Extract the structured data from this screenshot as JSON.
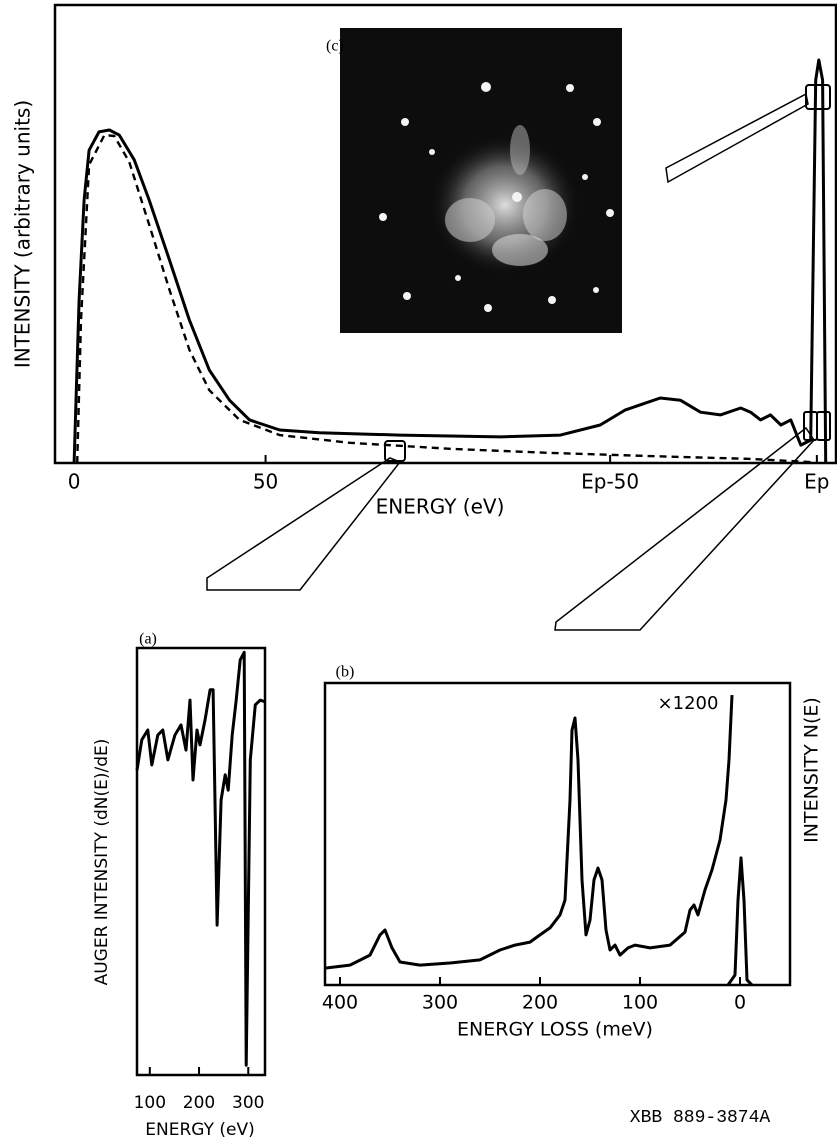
{
  "figure_id": "XBB 889-3874A",
  "chart_data": [
    {
      "type": "line",
      "inset_label": "(c)",
      "xlabel": "ENERGY (eV)",
      "ylabel": "INTENSITY (arbitrary units)",
      "xlim": [
        -5,
        199
      ],
      "ylim": [
        0,
        100
      ],
      "xticks": [
        0,
        50,
        {
          "value": 140,
          "label": "Ep-50"
        },
        {
          "value": 194,
          "label": "Ep"
        }
      ],
      "series": [
        {
          "style": "solid",
          "color": "#000000",
          "x": [
            0,
            1.3,
            2.6,
            3.9,
            6.5,
            9.2,
            11.8,
            15.7,
            19.6,
            24.9,
            30.1,
            35.3,
            40.6,
            45.8,
            53.7,
            64.1,
            85.1,
            111.3,
            127,
            137.4,
            144,
            153.1,
            158.4,
            163.6,
            168.8,
            174.1,
            176.7,
            179.3,
            181.9,
            184.6,
            187.2,
            189.8,
            192.4,
            193.7,
            194.5,
            195.5,
            196.3
          ],
          "values": [
            0,
            35.6,
            57.4,
            68.3,
            72.3,
            72.7,
            71.6,
            66.2,
            57.4,
            44.3,
            31.2,
            20.3,
            13.7,
            9.4,
            7.2,
            6.6,
            6.1,
            5.7,
            6.1,
            8.3,
            11.6,
            14.2,
            13.7,
            11.1,
            10.5,
            12.0,
            11.1,
            9.4,
            10.5,
            8.3,
            9.4,
            3.9,
            5.0,
            83.6,
            88.0,
            83.6,
            0
          ]
        },
        {
          "style": "dashed",
          "color": "#000000",
          "x": [
            0.8,
            1.8,
            3.9,
            7.9,
            10.5,
            14.4,
            19.6,
            24.9,
            30.1,
            35.3,
            43.2,
            53.7,
            72.0,
            98.2,
            124.3,
            150.5,
            176.7,
            192.4
          ],
          "values": [
            0,
            31.2,
            65.1,
            71.6,
            71.4,
            65.7,
            52.0,
            37.8,
            24.7,
            15.9,
            9.4,
            6.1,
            4.4,
            3.1,
            2.2,
            1.5,
            0.9,
            0.2
          ]
        }
      ]
    },
    {
      "type": "line",
      "panel_label": "(a)",
      "xlabel": "ENERGY (eV)",
      "ylabel": "AUGER INTENSITY (dN(E)/dE)",
      "xlim": [
        74,
        334
      ],
      "ylim": [
        0,
        100
      ],
      "xticks": [
        100,
        200,
        300
      ],
      "series": [
        {
          "style": "solid",
          "color": "#000000",
          "x": [
            74,
            83.7,
            95.9,
            104.1,
            116.3,
            126.5,
            136.7,
            151.0,
            163.3,
            173.5,
            181.6,
            187.8,
            195.9,
            202.0,
            212.2,
            222.4,
            228.6,
            236.7,
            244.9,
            253.1,
            259.2,
            267.3,
            275.5,
            283.7,
            291.8,
            295.9,
            304.1,
            314.3,
            324.5,
            334
          ],
          "values": [
            71.4,
            78.5,
            80.8,
            72.6,
            79.6,
            80.8,
            73.8,
            79.6,
            82.0,
            76.1,
            87.8,
            69.1,
            80.8,
            77.3,
            83.1,
            90.2,
            90.2,
            35.1,
            64.4,
            70.3,
            66.7,
            79.6,
            87.8,
            97.2,
            99,
            2.3,
            73.8,
            86.7,
            87.8,
            87.4
          ]
        }
      ]
    },
    {
      "type": "line",
      "panel_label": "(b)",
      "annotation": "×1200",
      "xlabel": "ENERGY LOSS (meV)",
      "ylabel": "INTENSITY N(E)",
      "xlim": [
        415,
        -50
      ],
      "ylim": [
        0,
        100
      ],
      "xticks": [
        400,
        300,
        200,
        100,
        0
      ],
      "series": [
        {
          "style": "solid",
          "color": "#000000",
          "x": [
            415,
            390,
            370,
            360,
            355,
            348,
            340,
            320,
            290,
            260,
            240,
            225,
            210,
            200,
            190,
            180,
            175,
            172,
            170,
            168,
            165,
            162,
            158,
            154,
            150,
            146,
            142,
            138,
            134,
            130,
            125,
            120,
            112,
            105,
            90,
            70,
            55,
            50,
            46,
            42,
            35,
            28,
            20,
            14,
            11,
            8
          ],
          "values": [
            5.6,
            6.6,
            9.9,
            16.6,
            18.2,
            12.3,
            7.6,
            6.6,
            7.3,
            8.3,
            11.6,
            13.2,
            14.2,
            16.6,
            18.9,
            23.2,
            28.1,
            48.0,
            61.3,
            84.4,
            88.4,
            74.5,
            34.8,
            16.6,
            21.5,
            34.8,
            38.7,
            34.8,
            18.2,
            11.6,
            13.2,
            9.9,
            12.3,
            13.2,
            12.3,
            13.2,
            17.5,
            24.8,
            26.5,
            23.2,
            31.5,
            38.1,
            48.0,
            61.3,
            74.5,
            96.0
          ]
        },
        {
          "style": "solid",
          "color": "#000000",
          "x": [
            12,
            5,
            2,
            -1,
            -4,
            -7,
            -12
          ],
          "values": [
            0,
            3.3,
            28.1,
            42.1,
            28.1,
            1.7,
            0
          ]
        }
      ]
    }
  ]
}
